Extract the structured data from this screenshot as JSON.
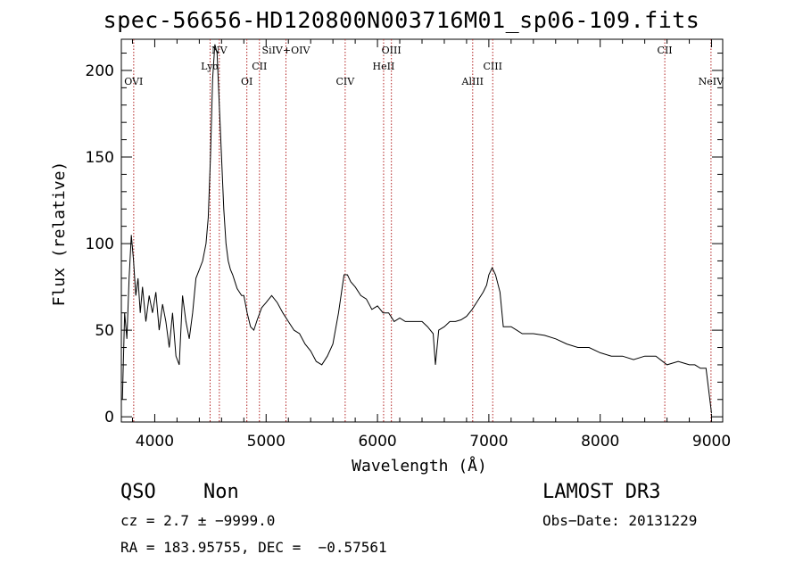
{
  "chart_data": {
    "type": "line",
    "title": "spec-56656-HD120800N003716M01_sp06-109.fits",
    "xlabel": "Wavelength (Å)",
    "ylabel": "Flux (relative)",
    "xlim": [
      3700,
      9100
    ],
    "ylim": [
      -3,
      218
    ],
    "xticks": [
      4000,
      5000,
      6000,
      7000,
      8000,
      9000
    ],
    "yticks": [
      0,
      50,
      100,
      150,
      200
    ],
    "grid": false,
    "line_color": "#000000",
    "marker_color": "#b22222",
    "series": [
      {
        "x": [
          3710,
          3730,
          3750,
          3770,
          3790,
          3810,
          3830,
          3850,
          3870,
          3890,
          3920,
          3950,
          3980,
          4010,
          4040,
          4070,
          4100,
          4130,
          4160,
          4190,
          4220,
          4250,
          4280,
          4310,
          4340,
          4370,
          4400,
          4430,
          4460,
          4480,
          4500,
          4520,
          4540,
          4560,
          4580,
          4600,
          4620,
          4640,
          4660,
          4680,
          4700,
          4720,
          4740,
          4760,
          4780,
          4800,
          4830,
          4860,
          4890,
          4920,
          4960,
          5000,
          5050,
          5100,
          5150,
          5200,
          5250,
          5300,
          5350,
          5400,
          5450,
          5500,
          5550,
          5600,
          5650,
          5700,
          5730,
          5760,
          5800,
          5850,
          5900,
          5950,
          6000,
          6050,
          6100,
          6150,
          6200,
          6250,
          6300,
          6350,
          6400,
          6450,
          6500,
          6520,
          6550,
          6600,
          6650,
          6700,
          6750,
          6800,
          6850,
          6900,
          6950,
          6980,
          7000,
          7030,
          7060,
          7100,
          7130,
          7160,
          7200,
          7250,
          7300,
          7400,
          7500,
          7600,
          7700,
          7800,
          7900,
          8000,
          8100,
          8200,
          8300,
          8400,
          8500,
          8600,
          8700,
          8800,
          8850,
          8900,
          8950,
          9000
        ],
        "y": [
          10,
          60,
          45,
          80,
          105,
          90,
          70,
          80,
          60,
          75,
          55,
          70,
          60,
          72,
          50,
          65,
          55,
          40,
          60,
          35,
          30,
          70,
          55,
          45,
          60,
          80,
          85,
          90,
          100,
          115,
          150,
          195,
          215,
          210,
          180,
          150,
          120,
          100,
          90,
          85,
          82,
          78,
          74,
          72,
          70,
          70,
          60,
          52,
          50,
          56,
          63,
          66,
          70,
          66,
          60,
          55,
          50,
          48,
          42,
          38,
          32,
          30,
          35,
          42,
          60,
          82,
          82,
          78,
          75,
          70,
          68,
          62,
          64,
          60,
          60,
          55,
          57,
          55,
          55,
          55,
          55,
          52,
          48,
          30,
          50,
          52,
          55,
          55,
          56,
          58,
          62,
          67,
          72,
          76,
          82,
          86,
          82,
          72,
          52,
          52,
          52,
          50,
          48,
          48,
          47,
          45,
          42,
          40,
          40,
          37,
          35,
          35,
          33,
          35,
          35,
          30,
          32,
          30,
          30,
          28,
          28,
          2
        ]
      }
    ],
    "lines": [
      {
        "label": "OVI",
        "x": 3811
      },
      {
        "label": "Lyα",
        "x": 4497
      },
      {
        "label": "NV",
        "x": 4580
      },
      {
        "label": "OI",
        "x": 4827
      },
      {
        "label": "CII",
        "x": 4940
      },
      {
        "label": "SiIV+OIV",
        "x": 5178
      },
      {
        "label": "CIV",
        "x": 5710
      },
      {
        "label": "HeII",
        "x": 6055
      },
      {
        "label": "OIII",
        "x": 6125
      },
      {
        "label": "AlIII",
        "x": 6855
      },
      {
        "label": "CIII",
        "x": 7035
      },
      {
        "label": "CII",
        "x": 8580
      },
      {
        "label": "NeIV",
        "x": 8995
      }
    ]
  },
  "info": {
    "class": "QSO",
    "subclass": "Non",
    "survey": "LAMOST DR3",
    "cz": "cz = 2.7 ± −9999.0",
    "obs_date": "Obs−Date: 20131229",
    "coords": "RA = 183.95755, DEC =  −0.57561"
  }
}
